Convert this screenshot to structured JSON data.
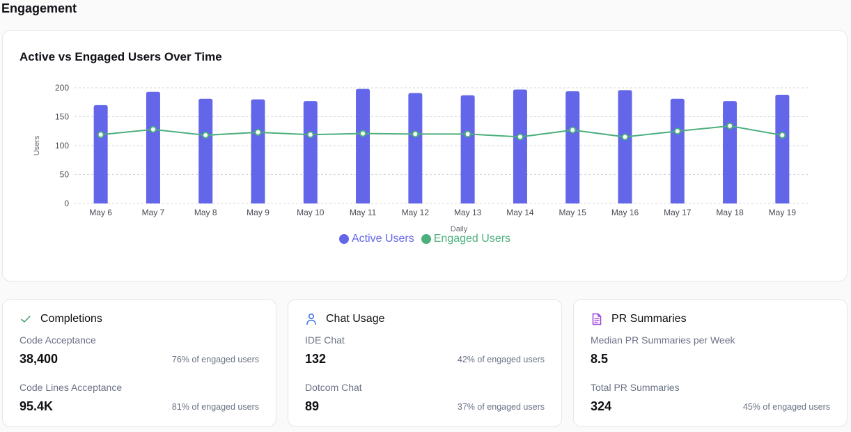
{
  "section": {
    "title": "Engagement"
  },
  "chart": {
    "title": "Active vs Engaged Users Over Time"
  },
  "colors": {
    "active": "#6366e9",
    "engaged": "#4caf7d",
    "grid": "#d4d4d8"
  },
  "chart_data": {
    "type": "bar",
    "title": "Active vs Engaged Users Over Time",
    "xlabel": "Daily",
    "ylabel": "Users",
    "ylim": [
      0,
      200
    ],
    "yticks": [
      0,
      50,
      100,
      150,
      200
    ],
    "grid": true,
    "legend_position": "bottom-center",
    "categories": [
      "May 6",
      "May 7",
      "May 8",
      "May 9",
      "May 10",
      "May 11",
      "May 12",
      "May 13",
      "May 14",
      "May 15",
      "May 16",
      "May 17",
      "May 18",
      "May 19"
    ],
    "series": [
      {
        "name": "Active Users",
        "type": "bar",
        "values": [
          170,
          193,
          181,
          180,
          177,
          198,
          191,
          187,
          197,
          194,
          196,
          181,
          177,
          188
        ]
      },
      {
        "name": "Engaged Users",
        "type": "line",
        "values": [
          119,
          128,
          118,
          123,
          119,
          121,
          120,
          120,
          115,
          127,
          115,
          125,
          134,
          118
        ]
      }
    ]
  },
  "cards": [
    {
      "title": "Completions",
      "icon": "check-icon",
      "metrics": [
        {
          "label": "Code Acceptance",
          "value": "38,400",
          "sub": "76% of engaged users"
        },
        {
          "label": "Code Lines Acceptance",
          "value": "95.4K",
          "sub": "81% of engaged users"
        }
      ]
    },
    {
      "title": "Chat Usage",
      "icon": "user-icon",
      "metrics": [
        {
          "label": "IDE Chat",
          "value": "132",
          "sub": "42% of engaged users"
        },
        {
          "label": "Dotcom Chat",
          "value": "89",
          "sub": "37% of engaged users"
        }
      ]
    },
    {
      "title": "PR Summaries",
      "icon": "document-icon",
      "metrics": [
        {
          "label": "Median PR Summaries per Week",
          "value": "8.5",
          "sub": ""
        },
        {
          "label": "Total PR Summaries",
          "value": "324",
          "sub": "45% of engaged users"
        }
      ]
    }
  ]
}
